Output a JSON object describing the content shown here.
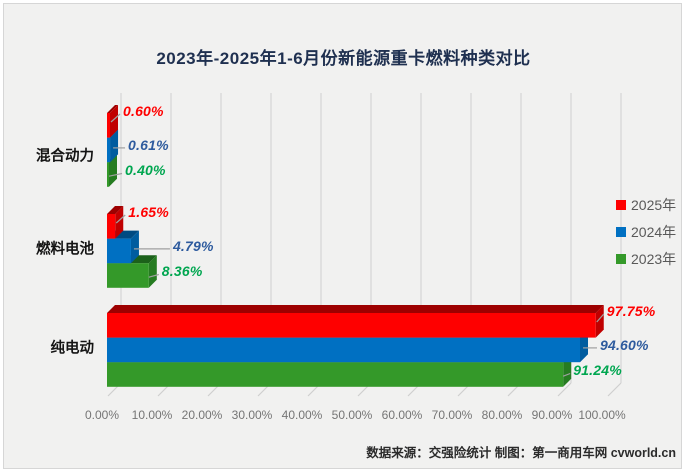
{
  "chart_data": {
    "type": "bar",
    "orientation": "horizontal",
    "style": "3d",
    "title": "2023年-2025年1-6月份新能源重卡燃料种类对比",
    "categories": [
      "混合动力",
      "燃料电池",
      "纯电动"
    ],
    "series": [
      {
        "name": "2025年",
        "color": "#fe0000",
        "label_color": "#ff0000",
        "values": [
          0.6,
          1.65,
          97.75
        ],
        "labels": [
          "0.60%",
          "1.65%",
          "97.75%"
        ]
      },
      {
        "name": "2024年",
        "color": "#0070c2",
        "label_color": "#2e5b9e",
        "values": [
          0.61,
          4.79,
          94.6
        ],
        "labels": [
          "0.61%",
          "4.79%",
          "94.60%"
        ]
      },
      {
        "name": "2023年",
        "color": "#349929",
        "label_color": "#00a650",
        "values": [
          0.4,
          8.36,
          91.24
        ],
        "labels": [
          "0.40%",
          "8.36%",
          "91.24%"
        ]
      }
    ],
    "xlim": [
      0,
      100
    ],
    "x_tick_labels": [
      "0.00%",
      "10.00%",
      "20.00%",
      "30.00%",
      "40.00%",
      "50.00%",
      "60.00%",
      "70.00%",
      "80.00%",
      "90.00%",
      "100.00%"
    ],
    "grid": true,
    "legend_position": "middle-right",
    "unit": "%"
  },
  "footer": {
    "text": "数据来源：交强险统计 制图：第一商用车网 cvworld.cn"
  }
}
